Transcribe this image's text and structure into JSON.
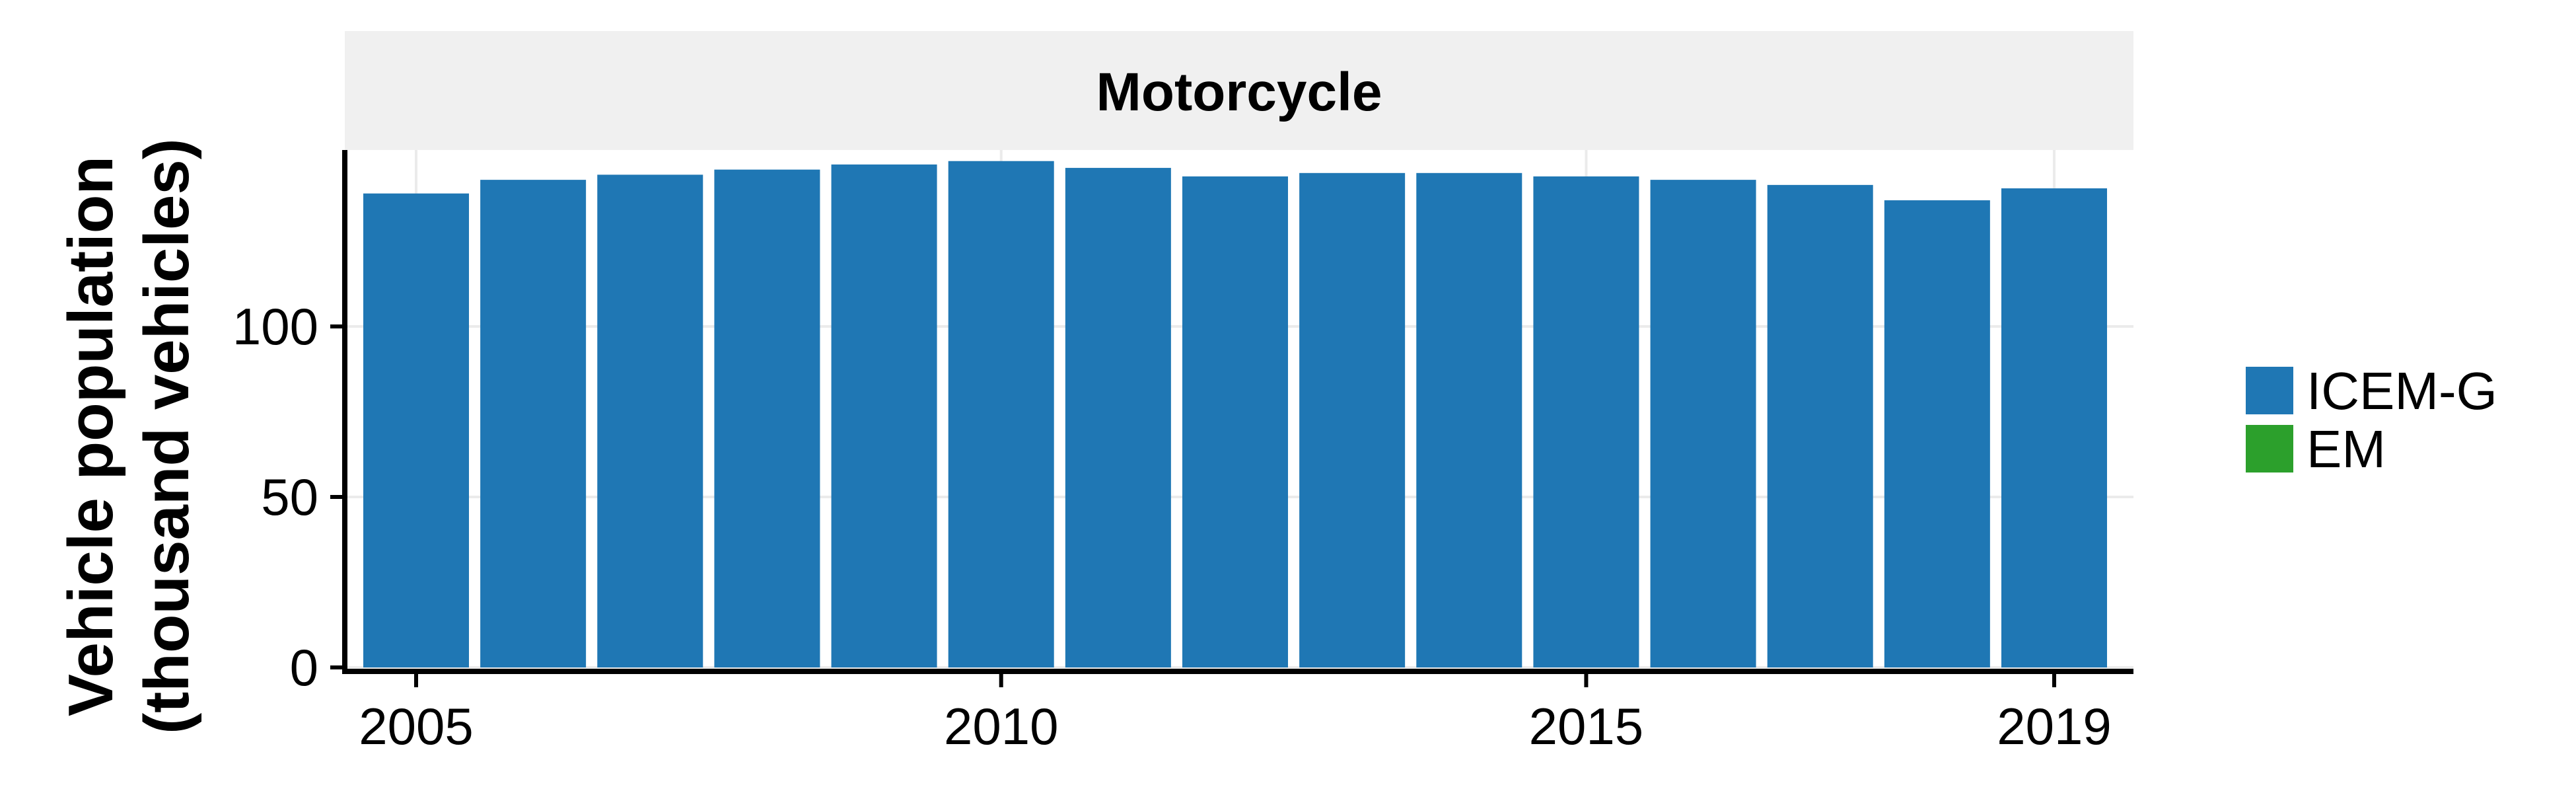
{
  "chart_data": {
    "type": "bar",
    "facet": "Motorcycle",
    "ylabel_line1": "Vehicle population",
    "ylabel_line2": "(thousand vehicles)",
    "x": [
      2005,
      2006,
      2007,
      2008,
      2009,
      2010,
      2011,
      2012,
      2013,
      2014,
      2015,
      2016,
      2017,
      2018,
      2019
    ],
    "x_ticks": [
      "2005",
      "2010",
      "2015",
      "2019"
    ],
    "y_ticks": [
      "0",
      "50",
      "100"
    ],
    "ylim": [
      0,
      150
    ],
    "series": [
      {
        "name": "ICEM-G",
        "color": "#1f77b4",
        "values": [
          139,
          143,
          144.5,
          146,
          147.5,
          148.5,
          146.5,
          144,
          145,
          145,
          144,
          143,
          141.5,
          137,
          140.5
        ]
      },
      {
        "name": "EM",
        "color": "#2ca02c",
        "values": [
          0,
          0,
          0,
          0,
          0,
          0,
          0,
          0,
          0,
          0,
          0,
          0,
          0,
          0,
          0
        ]
      }
    ],
    "grid": true,
    "legend_position": "right"
  }
}
